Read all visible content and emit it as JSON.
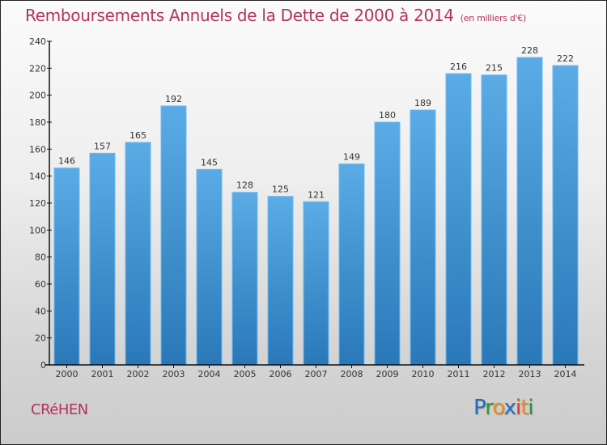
{
  "header": {
    "title": "Remboursements Annuels de la Dette de 2000 à 2014",
    "unit": "(en milliers d'€)"
  },
  "footer": {
    "commune": "CRéHEN",
    "logo": [
      "P",
      "r",
      "o",
      "x",
      "i",
      "t",
      "i"
    ],
    "logo_colors": [
      "#1f6fc0",
      "#2d9a2d",
      "#f08a1c",
      "#1f6fc0",
      "#e03b2a",
      "#f08a1c",
      "#2d9a2d"
    ]
  },
  "colors": {
    "bar_top": "#5aabe6",
    "bar_bottom": "#2a78b8",
    "text": "#333333",
    "accent": "#b5315f"
  },
  "chart_data": {
    "type": "bar",
    "title": "Remboursements Annuels de la Dette de 2000 à 2014",
    "subtitle": "(en milliers d'€)",
    "xlabel": "",
    "ylabel": "",
    "categories": [
      "2000",
      "2001",
      "2002",
      "2003",
      "2004",
      "2005",
      "2006",
      "2007",
      "2008",
      "2009",
      "2010",
      "2011",
      "2012",
      "2013",
      "2014"
    ],
    "values": [
      146,
      157,
      165,
      192,
      145,
      128,
      125,
      121,
      149,
      180,
      189,
      216,
      215,
      228,
      222
    ],
    "ylim": [
      0,
      240
    ],
    "yticks": [
      0,
      20,
      40,
      60,
      80,
      100,
      120,
      140,
      160,
      180,
      200,
      220,
      240
    ],
    "grid": false,
    "legend": "none"
  }
}
